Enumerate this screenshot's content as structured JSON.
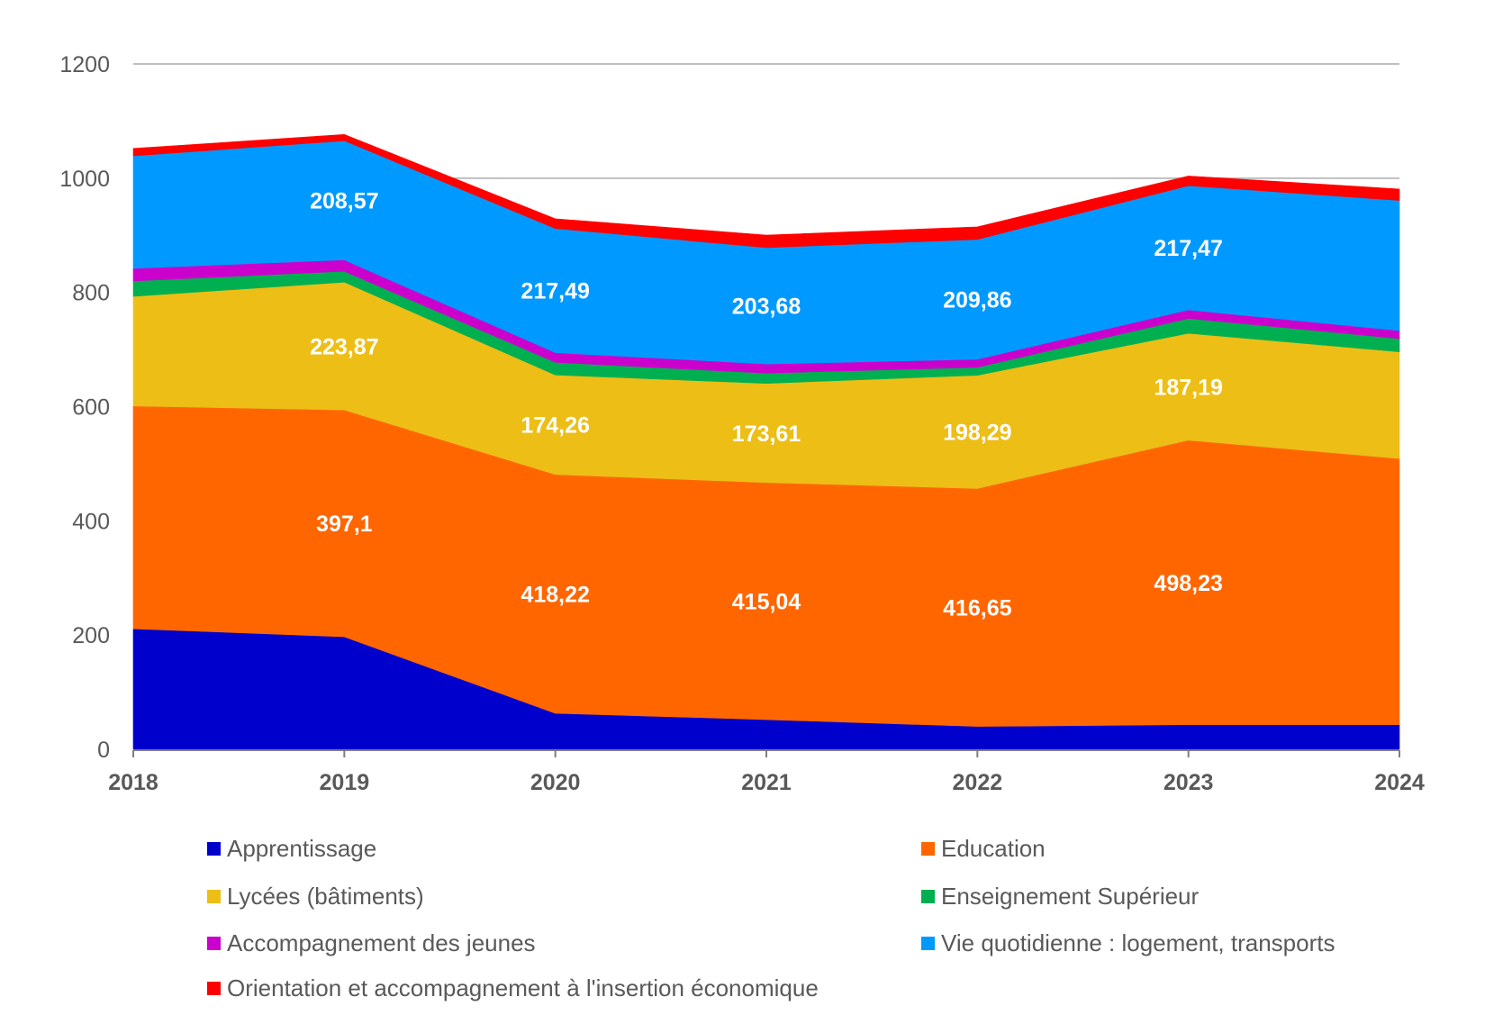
{
  "chart_data": {
    "type": "area",
    "stacked": true,
    "title": "",
    "xlabel": "",
    "ylabel": "",
    "categories": [
      "2018",
      "2019",
      "2020",
      "2021",
      "2022",
      "2023",
      "2024"
    ],
    "ylim": [
      0,
      1200
    ],
    "yticks": [
      0,
      200,
      400,
      600,
      800,
      1000,
      1200
    ],
    "ytick_labels": [
      "0",
      "200",
      "400",
      "600",
      "800",
      "1000",
      "1200"
    ],
    "grid": true,
    "legend_position": "bottom",
    "series": [
      {
        "name": "Apprentissage",
        "color": "#0000CC",
        "values": [
          211,
          197,
          63,
          52,
          40,
          43,
          43
        ],
        "labels": [
          null,
          null,
          null,
          null,
          null,
          null,
          null
        ]
      },
      {
        "name": "Education",
        "color": "#FF6600",
        "values": [
          390,
          397.1,
          418.22,
          415.04,
          416.65,
          498.23,
          466
        ],
        "labels": [
          null,
          "397,1",
          "418,22",
          "415,04",
          "416,65",
          "498,23",
          null
        ]
      },
      {
        "name": "Lycées (bâtiments)",
        "color": "#EDBE16",
        "values": [
          192,
          223.87,
          174.26,
          173.61,
          198.29,
          187.19,
          187
        ],
        "labels": [
          null,
          "223,87",
          "174,26",
          "173,61",
          "198,29",
          "187,19",
          null
        ]
      },
      {
        "name": "Enseignement Supérieur",
        "color": "#00B050",
        "values": [
          27,
          19,
          22,
          18,
          14,
          26,
          23
        ],
        "labels": [
          null,
          null,
          null,
          null,
          null,
          null,
          null
        ]
      },
      {
        "name": "Accompagnement des jeunes",
        "color": "#CC00CC",
        "values": [
          22,
          20,
          17,
          16,
          14,
          15,
          14
        ],
        "labels": [
          null,
          null,
          null,
          null,
          null,
          null,
          null
        ]
      },
      {
        "name": "Vie quotidienne : logement, transports",
        "color": "#0099FF",
        "values": [
          197,
          208.57,
          217.49,
          203.68,
          209.86,
          217.47,
          228
        ],
        "labels": [
          null,
          "208,57",
          "217,49",
          "203,68",
          "209,86",
          "217,47",
          null
        ]
      },
      {
        "name": "Orientation et accompagnement à l'insertion économique",
        "color": "#FF0000",
        "values": [
          13,
          11,
          17,
          22,
          22,
          17,
          20
        ],
        "labels": [
          null,
          null,
          null,
          null,
          null,
          null,
          null
        ]
      }
    ],
    "legend_order": [
      0,
      1,
      2,
      3,
      4,
      5,
      6
    ]
  }
}
